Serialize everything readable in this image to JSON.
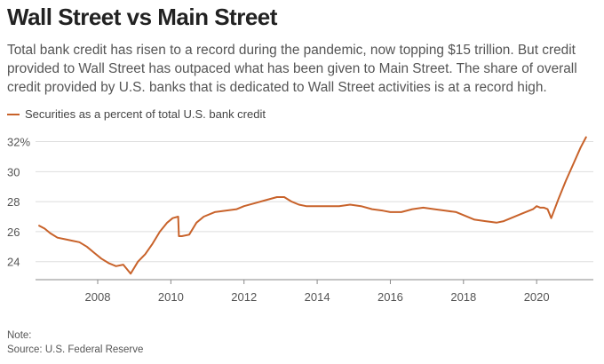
{
  "title": "Wall Street vs Main Street",
  "subtitle": "Total bank credit has risen to a record during the pandemic, now topping $15 trillion. But credit provided to Wall Street has outpaced what has been given to Main Street. The share of overall credit provided by U.S. banks that is dedicated to Wall Street activities is at a record high.",
  "footer": {
    "note": "Note:",
    "source": "Source: U.S. Federal Reserve"
  },
  "chart_data": {
    "type": "line",
    "xlim": [
      2006.3,
      2021.55
    ],
    "ylim": [
      22.8,
      32.8
    ],
    "y_ticks": [
      24,
      26,
      28,
      30,
      32
    ],
    "y_tick_labels": [
      "24",
      "26",
      "28",
      "30",
      "32%"
    ],
    "x_ticks": [
      2008,
      2010,
      2012,
      2014,
      2016,
      2018,
      2020
    ],
    "x_tick_labels": [
      "2008",
      "2010",
      "2012",
      "2014",
      "2016",
      "2018",
      "2020"
    ],
    "grid": "horizontal",
    "legend_position": "top-left",
    "colors": {
      "series": "#c8622a",
      "grid": "#dddddd",
      "axis": "#888888"
    },
    "series": [
      {
        "name": "Securities as a percent of total U.S. bank credit",
        "x": [
          2006.4,
          2006.55,
          2006.7,
          2006.9,
          2007.1,
          2007.3,
          2007.5,
          2007.7,
          2007.9,
          2008.1,
          2008.3,
          2008.5,
          2008.7,
          2008.8,
          2008.9,
          2009.0,
          2009.1,
          2009.3,
          2009.5,
          2009.7,
          2009.9,
          2010.05,
          2010.2,
          2010.22,
          2010.3,
          2010.5,
          2010.7,
          2010.9,
          2011.2,
          2011.5,
          2011.8,
          2012.0,
          2012.3,
          2012.6,
          2012.9,
          2013.1,
          2013.3,
          2013.5,
          2013.7,
          2014.0,
          2014.3,
          2014.6,
          2014.9,
          2015.2,
          2015.5,
          2015.8,
          2016.0,
          2016.3,
          2016.6,
          2016.9,
          2017.2,
          2017.5,
          2017.8,
          2018.0,
          2018.3,
          2018.6,
          2018.9,
          2019.1,
          2019.3,
          2019.6,
          2019.9,
          2020.0,
          2020.1,
          2020.2,
          2020.3,
          2020.4,
          2020.6,
          2020.8,
          2021.0,
          2021.2,
          2021.35
        ],
        "y": [
          26.4,
          26.2,
          25.9,
          25.6,
          25.5,
          25.4,
          25.3,
          25.0,
          24.6,
          24.2,
          23.9,
          23.7,
          23.8,
          23.5,
          23.2,
          23.6,
          24.0,
          24.5,
          25.2,
          26.0,
          26.6,
          26.9,
          27.0,
          25.7,
          25.7,
          25.8,
          26.6,
          27.0,
          27.3,
          27.4,
          27.5,
          27.7,
          27.9,
          28.1,
          28.3,
          28.3,
          28.0,
          27.8,
          27.7,
          27.7,
          27.7,
          27.7,
          27.8,
          27.7,
          27.5,
          27.4,
          27.3,
          27.3,
          27.5,
          27.6,
          27.5,
          27.4,
          27.3,
          27.1,
          26.8,
          26.7,
          26.6,
          26.7,
          26.9,
          27.2,
          27.5,
          27.7,
          27.6,
          27.6,
          27.5,
          26.9,
          28.2,
          29.4,
          30.5,
          31.6,
          32.3
        ]
      }
    ]
  }
}
